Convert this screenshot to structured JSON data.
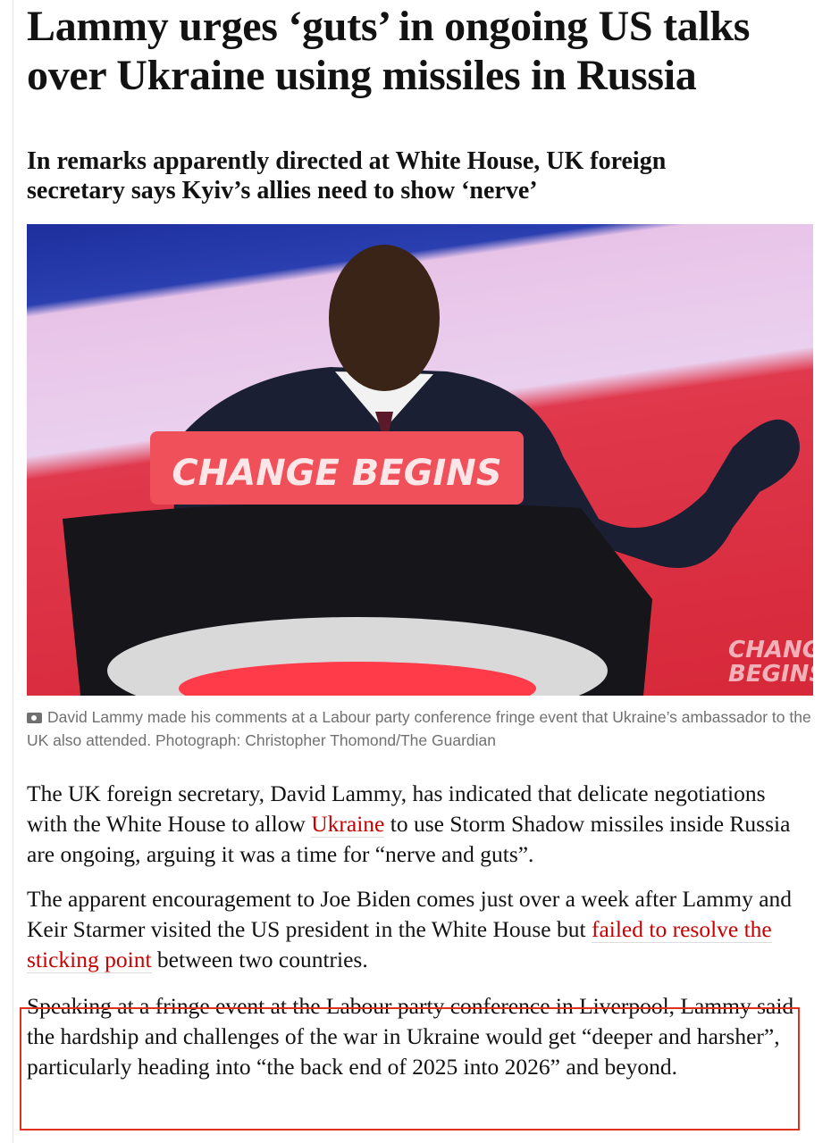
{
  "article": {
    "headline": "Lammy urges ‘guts’ in ongoing US talks over Ukraine using missiles in Russia",
    "standfirst": "In remarks apparently directed at White House, UK foreign secretary says Kyiv’s allies need to show ‘nerve’",
    "image": {
      "podium_text": "CHANGE BEGINS",
      "background_text": "CHANGE BEGINS",
      "caption_icon": "camera-icon",
      "caption": "David Lammy made his comments at a Labour party conference fringe event that Ukraine’s ambassador to the UK also attended. Photograph: Christopher Thomond/The Guardian"
    },
    "paragraphs": [
      {
        "before": "The UK foreign secretary, David Lammy, has indicated that delicate negotiations with the White House to allow ",
        "link": "Ukraine",
        "after": " to use Storm Shadow missiles inside Russia are ongoing, arguing it was a time for “nerve and guts”."
      },
      {
        "before": "The apparent encouragement to Joe Biden comes just over a week after Lammy and Keir Starmer visited the US president in the White House but ",
        "link": "failed to resolve the sticking point",
        "after": " between two countries."
      },
      {
        "before": "Speaking at a fringe event at the Labour party conference in Liverpool, Lammy said the hardship and challenges of the war in Ukraine would get “deeper and harsher”, particularly heading into “the back end of 2025 into 2026” and beyond.",
        "link": "",
        "after": ""
      }
    ]
  },
  "colors": {
    "link": "#c70000",
    "highlight_box": "#e0301e",
    "text": "#121212",
    "caption": "#707070"
  }
}
